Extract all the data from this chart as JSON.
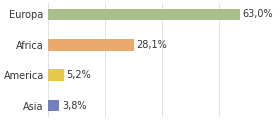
{
  "categories": [
    "Europa",
    "Africa",
    "America",
    "Asia"
  ],
  "values": [
    63.0,
    28.1,
    5.2,
    3.8
  ],
  "labels": [
    "63,0%",
    "28,1%",
    "5,2%",
    "3,8%"
  ],
  "bar_colors": [
    "#a8bf8a",
    "#e8a96a",
    "#e8c84a",
    "#7080c0"
  ],
  "background_color": "#ffffff",
  "xlim": [
    0,
    75
  ],
  "grid_ticks": [
    0,
    18.75,
    37.5,
    56.25,
    75
  ]
}
